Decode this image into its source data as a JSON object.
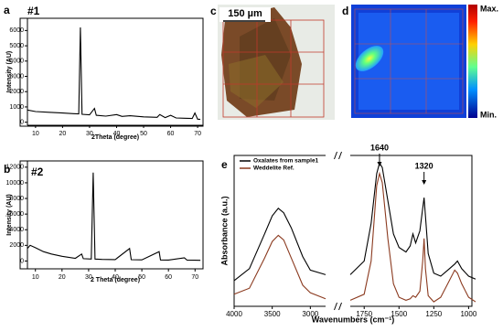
{
  "chart_data": [
    {
      "type": "line",
      "panel_label": "a",
      "title": "#1",
      "y_label": "Intensity (AU)",
      "x_label": "2Theta (degree)",
      "xlim": [
        7,
        72
      ],
      "ylim": [
        -200,
        6800
      ],
      "xticks": [
        10,
        20,
        30,
        40,
        50,
        60,
        70
      ],
      "yticks": [
        0,
        1000,
        2000,
        3000,
        4000,
        5000,
        6000
      ],
      "series": [
        {
          "color": "#000000",
          "x": [
            7,
            10,
            15,
            20,
            24,
            26,
            26.6,
            27.2,
            30,
            31.8,
            32.5,
            36,
            40,
            42,
            45,
            50,
            55,
            56,
            58,
            60,
            62,
            65,
            68,
            69,
            70,
            71
          ],
          "values": [
            800,
            700,
            650,
            600,
            560,
            540,
            6200,
            520,
            480,
            900,
            450,
            400,
            500,
            380,
            420,
            350,
            320,
            500,
            300,
            450,
            280,
            260,
            240,
            600,
            200,
            180
          ]
        }
      ]
    },
    {
      "type": "line",
      "panel_label": "b",
      "title": "#2",
      "y_label": "Intensity (AU)",
      "x_label": "2 Theta (degree)",
      "xlim": [
        7,
        73
      ],
      "ylim": [
        -1000,
        12800
      ],
      "xticks": [
        10,
        20,
        30,
        40,
        50,
        60,
        70
      ],
      "yticks": [
        0,
        2000,
        4000,
        6000,
        8000,
        10000,
        12000
      ],
      "series": [
        {
          "color": "#000000",
          "x": [
            7,
            8,
            10,
            13,
            16,
            20,
            25,
            27.4,
            28,
            31,
            31.7,
            32.4,
            35,
            40,
            45.4,
            46,
            50,
            56.5,
            57,
            60,
            66,
            67,
            70,
            72
          ],
          "values": [
            1600,
            2000,
            1700,
            1200,
            900,
            600,
            350,
            900,
            300,
            250,
            11300,
            250,
            200,
            180,
            1600,
            170,
            150,
            1200,
            140,
            120,
            400,
            110,
            100,
            90
          ]
        }
      ]
    },
    {
      "type": "line",
      "panel_label": "e",
      "y_label": "Absorbance (a.u.)",
      "x_label": "Wavenumbers (cm⁻¹)",
      "xlim": [
        4000,
        950
      ],
      "xbreak": [
        2800,
        1850
      ],
      "ylim": [
        0,
        1
      ],
      "xticks": [
        4000,
        3500,
        3000,
        1750,
        1500,
        1250,
        1000
      ],
      "annotations": [
        {
          "text": "1640",
          "x": 1640
        },
        {
          "text": "1320",
          "x": 1320
        }
      ],
      "series": [
        {
          "name": "Oxalates from sample1",
          "color": "#000000",
          "x": [
            4000,
            3800,
            3600,
            3500,
            3420,
            3350,
            3250,
            3100,
            3000,
            2800,
            2300,
            1850,
            1750,
            1700,
            1660,
            1640,
            1620,
            1580,
            1540,
            1500,
            1450,
            1420,
            1400,
            1380,
            1350,
            1330,
            1320,
            1310,
            1290,
            1250,
            1200,
            1150,
            1100,
            1080,
            1050,
            1000,
            950
          ],
          "values": [
            0.17,
            0.25,
            0.48,
            0.6,
            0.65,
            0.62,
            0.52,
            0.33,
            0.24,
            0.21,
            null,
            0.21,
            0.3,
            0.55,
            0.88,
            0.95,
            0.92,
            0.7,
            0.48,
            0.39,
            0.36,
            0.4,
            0.48,
            0.42,
            0.5,
            0.65,
            0.72,
            0.6,
            0.35,
            0.22,
            0.2,
            0.24,
            0.28,
            0.3,
            0.25,
            0.2,
            0.18
          ]
        },
        {
          "name": "Weddelite Ref.",
          "color": "#8b3a1f",
          "x": [
            4000,
            3800,
            3600,
            3500,
            3420,
            3350,
            3250,
            3100,
            3000,
            2800,
            2300,
            1850,
            1750,
            1700,
            1660,
            1640,
            1620,
            1580,
            1540,
            1500,
            1450,
            1420,
            1400,
            1380,
            1350,
            1330,
            1320,
            1310,
            1290,
            1250,
            1200,
            1150,
            1100,
            1080,
            1050,
            1000,
            950
          ],
          "values": [
            0.08,
            0.12,
            0.32,
            0.43,
            0.47,
            0.44,
            0.32,
            0.14,
            0.09,
            0.05,
            null,
            0.04,
            0.08,
            0.3,
            0.8,
            0.88,
            0.82,
            0.45,
            0.15,
            0.06,
            0.04,
            0.05,
            0.07,
            0.06,
            0.1,
            0.3,
            0.45,
            0.25,
            0.07,
            0.03,
            0.06,
            0.15,
            0.24,
            0.22,
            0.15,
            0.06,
            0.03
          ]
        }
      ]
    }
  ],
  "images": [
    {
      "panel_label": "c",
      "scale_bar": "150 µm"
    },
    {
      "panel_label": "d",
      "colorbar_max": "Max.",
      "colorbar_min": "Min."
    }
  ]
}
